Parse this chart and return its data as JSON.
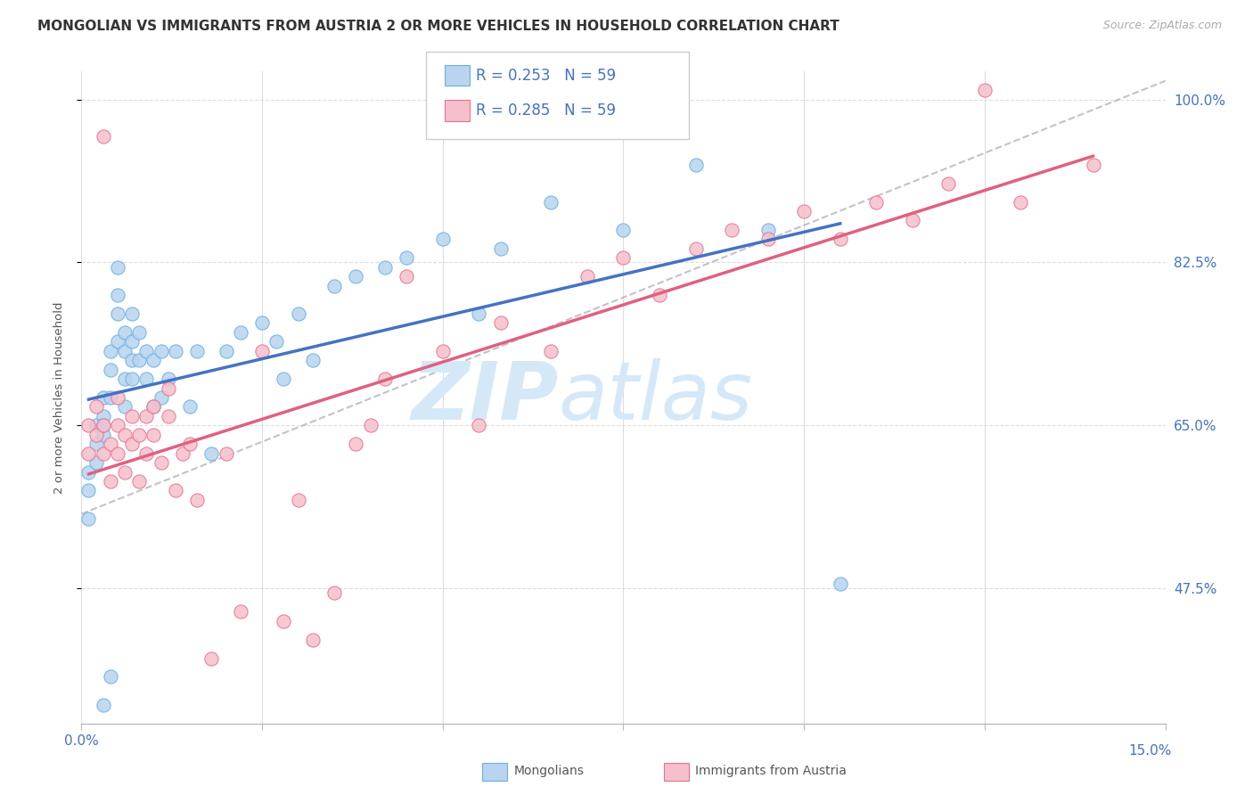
{
  "title": "MONGOLIAN VS IMMIGRANTS FROM AUSTRIA 2 OR MORE VEHICLES IN HOUSEHOLD CORRELATION CHART",
  "source": "Source: ZipAtlas.com",
  "ylabel": "2 or more Vehicles in Household",
  "xlim": [
    0.0,
    0.15
  ],
  "ylim": [
    0.33,
    1.03
  ],
  "ytick_vals": [
    0.475,
    0.65,
    0.825,
    1.0
  ],
  "ytick_labels": [
    "47.5%",
    "65.0%",
    "82.5%",
    "100.0%"
  ],
  "xtick_vals": [
    0.0,
    0.025,
    0.05,
    0.075,
    0.1,
    0.125,
    0.15
  ],
  "mongolian_color": "#b8d4ee",
  "mongolian_edge": "#6aaee8",
  "austria_color": "#f5c0cb",
  "austria_edge": "#e87090",
  "blue_line": "#4472c4",
  "pink_line": "#e06080",
  "dash_color": "#aaaaaa",
  "right_label_color": "#4472c4",
  "grid_color": "#dddddd",
  "bg_color": "#ffffff",
  "mongolian_x": [
    0.001,
    0.001,
    0.001,
    0.002,
    0.002,
    0.002,
    0.003,
    0.003,
    0.003,
    0.003,
    0.004,
    0.004,
    0.004,
    0.005,
    0.005,
    0.005,
    0.005,
    0.006,
    0.006,
    0.006,
    0.006,
    0.007,
    0.007,
    0.007,
    0.007,
    0.008,
    0.008,
    0.009,
    0.009,
    0.01,
    0.01,
    0.011,
    0.011,
    0.012,
    0.013,
    0.015,
    0.016,
    0.018,
    0.02,
    0.022,
    0.025,
    0.027,
    0.028,
    0.03,
    0.032,
    0.035,
    0.038,
    0.042,
    0.045,
    0.05,
    0.055,
    0.058,
    0.065,
    0.075,
    0.085,
    0.095,
    0.105,
    0.003,
    0.004
  ],
  "mongolian_y": [
    0.6,
    0.58,
    0.55,
    0.63,
    0.65,
    0.61,
    0.64,
    0.66,
    0.68,
    0.65,
    0.68,
    0.71,
    0.73,
    0.74,
    0.77,
    0.79,
    0.82,
    0.67,
    0.7,
    0.73,
    0.75,
    0.7,
    0.72,
    0.74,
    0.77,
    0.72,
    0.75,
    0.7,
    0.73,
    0.67,
    0.72,
    0.68,
    0.73,
    0.7,
    0.73,
    0.67,
    0.73,
    0.62,
    0.73,
    0.75,
    0.76,
    0.74,
    0.7,
    0.77,
    0.72,
    0.8,
    0.81,
    0.82,
    0.83,
    0.85,
    0.77,
    0.84,
    0.89,
    0.86,
    0.93,
    0.86,
    0.48,
    0.35,
    0.38
  ],
  "austria_x": [
    0.001,
    0.001,
    0.002,
    0.002,
    0.003,
    0.003,
    0.004,
    0.004,
    0.005,
    0.005,
    0.005,
    0.006,
    0.006,
    0.007,
    0.007,
    0.008,
    0.008,
    0.009,
    0.009,
    0.01,
    0.01,
    0.011,
    0.012,
    0.012,
    0.013,
    0.014,
    0.015,
    0.016,
    0.018,
    0.02,
    0.022,
    0.025,
    0.028,
    0.03,
    0.032,
    0.035,
    0.038,
    0.04,
    0.042,
    0.045,
    0.05,
    0.055,
    0.058,
    0.065,
    0.07,
    0.075,
    0.08,
    0.085,
    0.09,
    0.095,
    0.1,
    0.105,
    0.11,
    0.115,
    0.12,
    0.125,
    0.13,
    0.14,
    0.003
  ],
  "austria_y": [
    0.65,
    0.62,
    0.64,
    0.67,
    0.62,
    0.65,
    0.59,
    0.63,
    0.62,
    0.65,
    0.68,
    0.6,
    0.64,
    0.63,
    0.66,
    0.59,
    0.64,
    0.62,
    0.66,
    0.64,
    0.67,
    0.61,
    0.66,
    0.69,
    0.58,
    0.62,
    0.63,
    0.57,
    0.4,
    0.62,
    0.45,
    0.73,
    0.44,
    0.57,
    0.42,
    0.47,
    0.63,
    0.65,
    0.7,
    0.81,
    0.73,
    0.65,
    0.76,
    0.73,
    0.81,
    0.83,
    0.79,
    0.84,
    0.86,
    0.85,
    0.88,
    0.85,
    0.89,
    0.87,
    0.91,
    1.01,
    0.89,
    0.93,
    0.96
  ],
  "watermark_text": "ZIPatlas",
  "watermark_color": "#d5e8f8"
}
